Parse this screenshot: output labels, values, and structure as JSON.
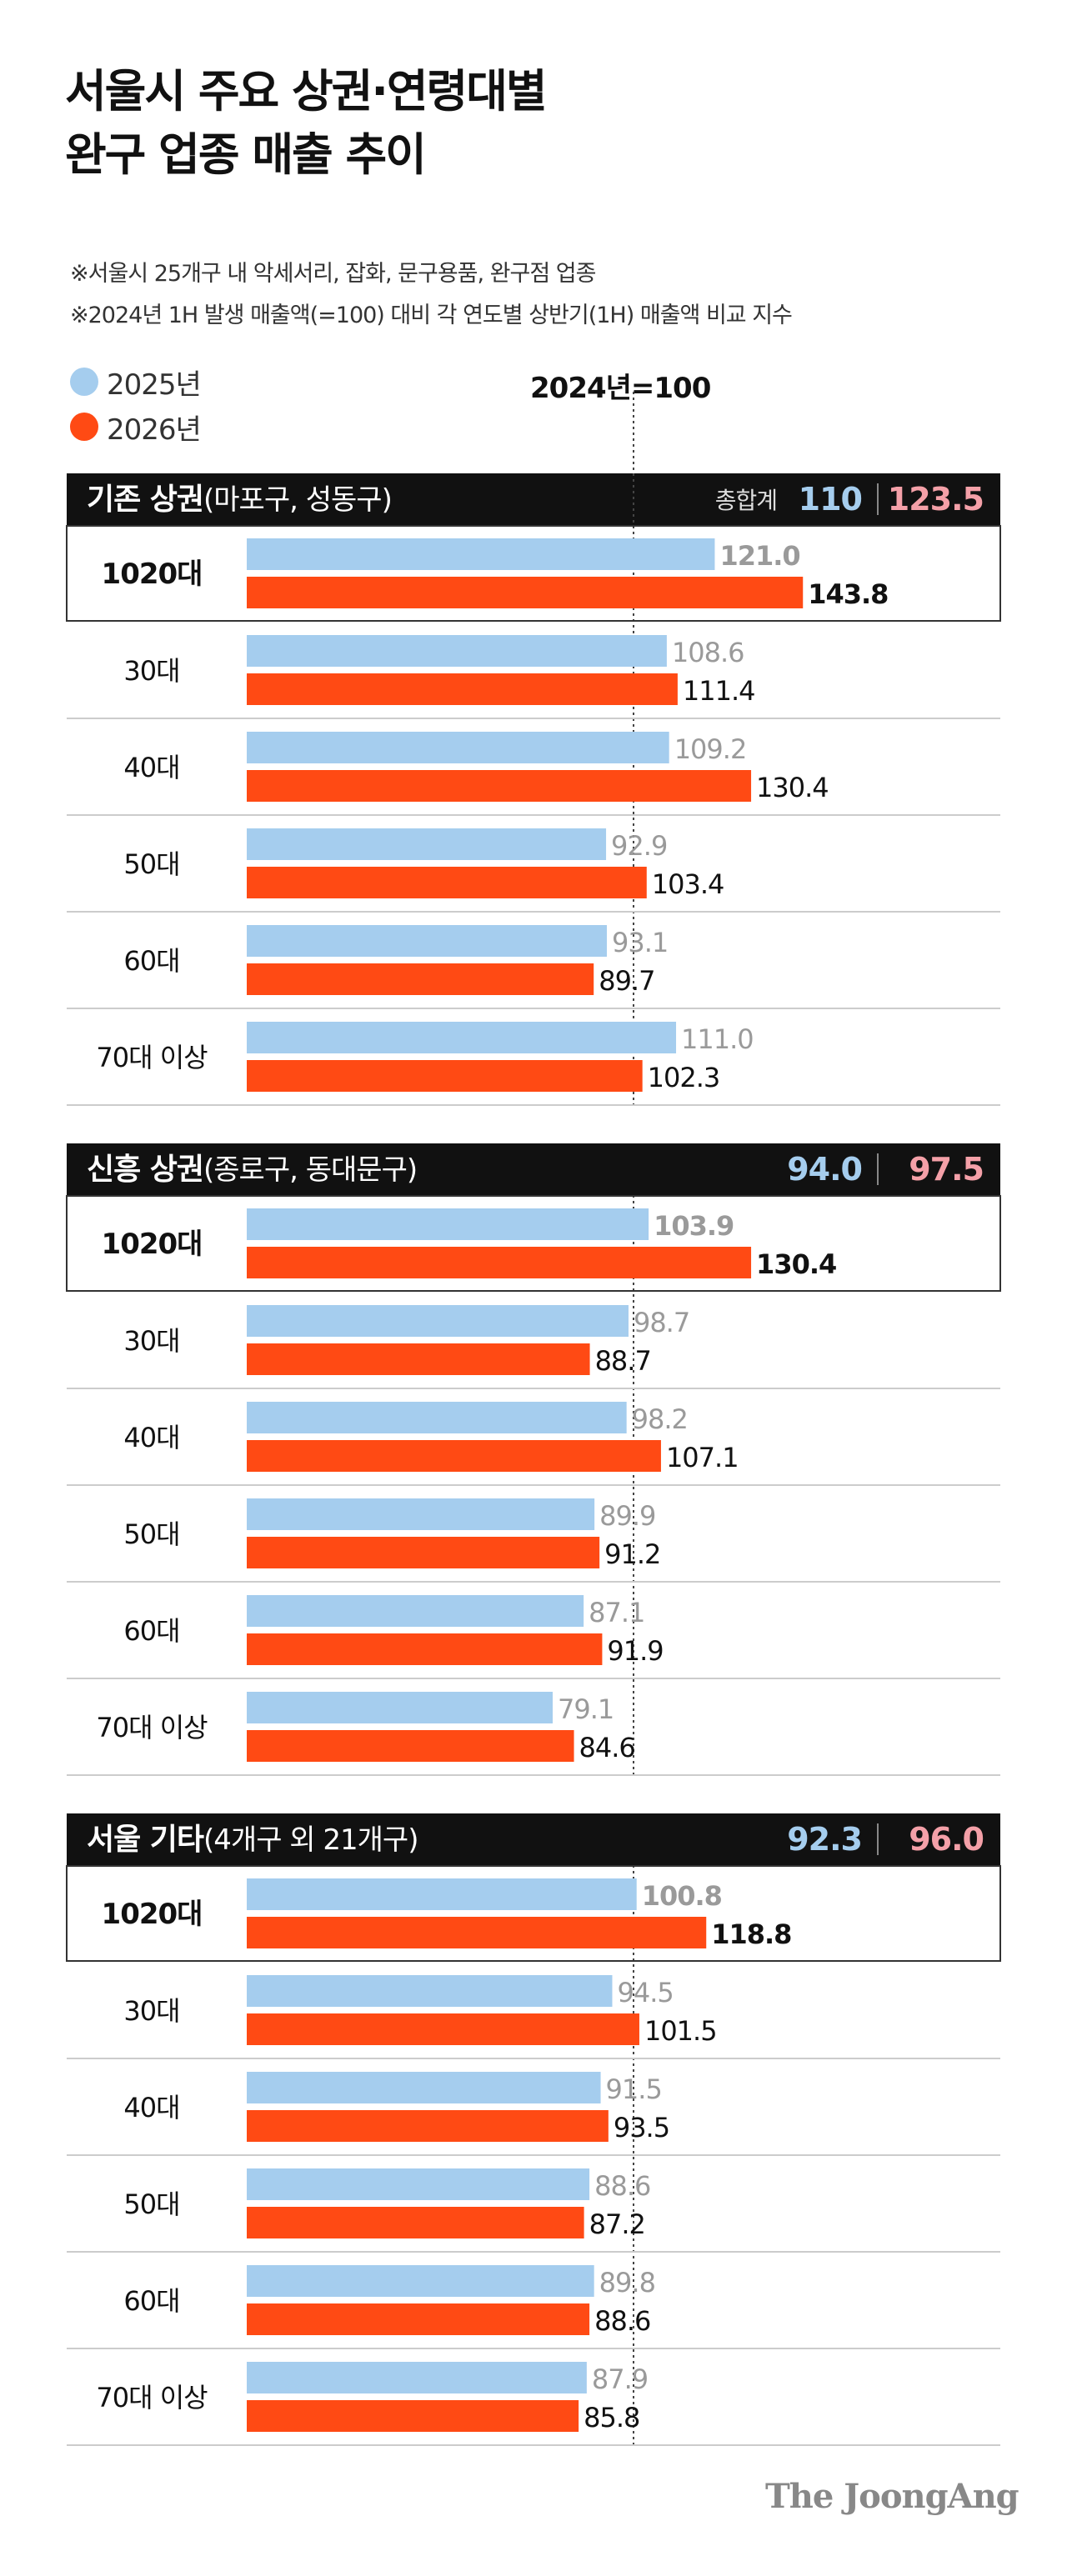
{
  "title_lines": [
    "서울시 주요 상권·연령대별",
    "완구 업종 매출 추이"
  ],
  "notes": [
    "※서울시 25개구 내 악세서리, 잡화, 문구용품, 완구점 업종",
    "※2024년 1H 발생 매출액(=100) 대비 각 연도별 상반기(1H) 매출액 비교 지수"
  ],
  "legend": [
    {
      "label": "2025년",
      "color": "#a5cdee"
    },
    {
      "label": "2026년",
      "color": "#ff4a14"
    }
  ],
  "reference_label": "2024년=100",
  "brand": "The JoongAng",
  "colors": {
    "bar_2025": "#a5cdee",
    "bar_2026": "#ff4a14",
    "header_bg": "#111111",
    "total_2025": "#a5cdee",
    "total_2026": "#f4a0a8",
    "label_2025": "#9a9a9a"
  },
  "chart_data": {
    "type": "bar",
    "orientation": "horizontal",
    "reference_value": 100,
    "series_names": [
      "2025년",
      "2026년"
    ],
    "panels": [
      {
        "title": "기존 상권",
        "subtitle": "(마포구, 성동구)",
        "total_label": "총합계",
        "totals": [
          110,
          123.5
        ],
        "totals_text": [
          "110",
          "123.5"
        ],
        "rows": [
          {
            "label": "1020대",
            "highlight": true,
            "values": [
              121.0,
              143.8
            ],
            "values_text": [
              "121.0",
              "143.8"
            ]
          },
          {
            "label": "30대",
            "values": [
              108.6,
              111.4
            ],
            "values_text": [
              "108.6",
              "111.4"
            ]
          },
          {
            "label": "40대",
            "values": [
              109.2,
              130.4
            ],
            "values_text": [
              "109.2",
              "130.4"
            ]
          },
          {
            "label": "50대",
            "values": [
              92.9,
              103.4
            ],
            "values_text": [
              "92.9",
              "103.4"
            ]
          },
          {
            "label": "60대",
            "values": [
              93.1,
              89.7
            ],
            "values_text": [
              "93.1",
              "89.7"
            ]
          },
          {
            "label": "70대 이상",
            "values": [
              111.0,
              102.3
            ],
            "values_text": [
              "111.0",
              "102.3"
            ]
          }
        ]
      },
      {
        "title": "신흥 상권",
        "subtitle": "(종로구, 동대문구)",
        "total_label": "",
        "totals": [
          94.0,
          97.5
        ],
        "totals_text": [
          "94.0",
          "97.5"
        ],
        "rows": [
          {
            "label": "1020대",
            "highlight": true,
            "values": [
              103.9,
              130.4
            ],
            "values_text": [
              "103.9",
              "130.4"
            ]
          },
          {
            "label": "30대",
            "values": [
              98.7,
              88.7
            ],
            "values_text": [
              "98.7",
              "88.7"
            ]
          },
          {
            "label": "40대",
            "values": [
              98.2,
              107.1
            ],
            "values_text": [
              "98.2",
              "107.1"
            ]
          },
          {
            "label": "50대",
            "values": [
              89.9,
              91.2
            ],
            "values_text": [
              "89.9",
              "91.2"
            ]
          },
          {
            "label": "60대",
            "values": [
              87.1,
              91.9
            ],
            "values_text": [
              "87.1",
              "91.9"
            ]
          },
          {
            "label": "70대 이상",
            "values": [
              79.1,
              84.6
            ],
            "values_text": [
              "79.1",
              "84.6"
            ]
          }
        ]
      },
      {
        "title": "서울 기타",
        "subtitle": "(4개구 외 21개구)",
        "total_label": "",
        "totals": [
          92.3,
          96.0
        ],
        "totals_text": [
          "92.3",
          "96.0"
        ],
        "rows": [
          {
            "label": "1020대",
            "highlight": true,
            "values": [
              100.8,
              118.8
            ],
            "values_text": [
              "100.8",
              "118.8"
            ]
          },
          {
            "label": "30대",
            "values": [
              94.5,
              101.5
            ],
            "values_text": [
              "94.5",
              "101.5"
            ]
          },
          {
            "label": "40대",
            "values": [
              91.5,
              93.5
            ],
            "values_text": [
              "91.5",
              "93.5"
            ]
          },
          {
            "label": "50대",
            "values": [
              88.6,
              87.2
            ],
            "values_text": [
              "88.6",
              "87.2"
            ]
          },
          {
            "label": "60대",
            "values": [
              89.8,
              88.6
            ],
            "values_text": [
              "89.8",
              "88.6"
            ]
          },
          {
            "label": "70대 이상",
            "values": [
              87.9,
              85.8
            ],
            "values_text": [
              "87.9",
              "85.8"
            ]
          }
        ]
      }
    ]
  }
}
